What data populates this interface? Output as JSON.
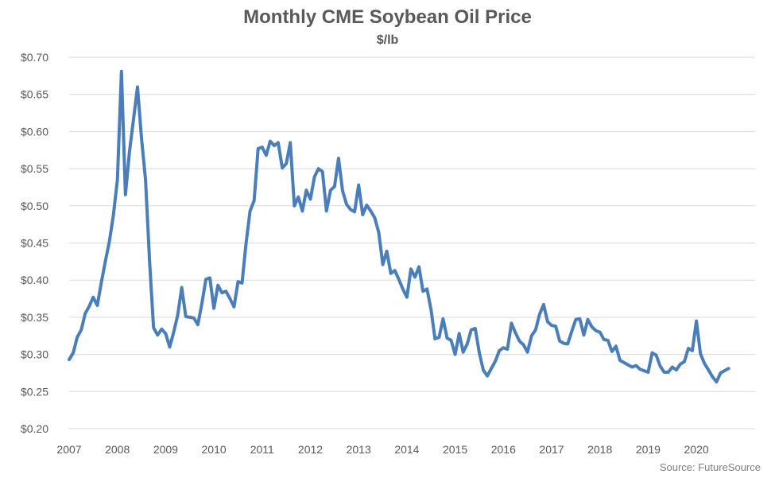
{
  "chart_data": {
    "type": "line",
    "title": "Monthly CME Soybean Oil Price",
    "subtitle": "$/lb",
    "source": "Source: FutureSource",
    "ylim": [
      0.2,
      0.7
    ],
    "y_ticks": [
      "$0.20",
      "$0.25",
      "$0.30",
      "$0.35",
      "$0.40",
      "$0.45",
      "$0.50",
      "$0.55",
      "$0.60",
      "$0.65",
      "$0.70"
    ],
    "x_ticks": [
      "2007",
      "2008",
      "2009",
      "2010",
      "2011",
      "2012",
      "2013",
      "2014",
      "2015",
      "2016",
      "2017",
      "2018",
      "2019",
      "2020"
    ],
    "grid": true,
    "legend": "none",
    "line_color": "#4a7ebb",
    "x_start_year": 2007,
    "series": [
      {
        "values": [
          0.293,
          0.302,
          0.323,
          0.333,
          0.355,
          0.365,
          0.377,
          0.366,
          0.397,
          0.425,
          0.452,
          0.487,
          0.535,
          0.681,
          0.515,
          0.573,
          0.616,
          0.66,
          0.59,
          0.535,
          0.425,
          0.336,
          0.326,
          0.334,
          0.328,
          0.31,
          0.33,
          0.353,
          0.39,
          0.351,
          0.35,
          0.349,
          0.34,
          0.368,
          0.401,
          0.403,
          0.362,
          0.393,
          0.383,
          0.385,
          0.375,
          0.364,
          0.398,
          0.396,
          0.45,
          0.493,
          0.507,
          0.577,
          0.579,
          0.568,
          0.587,
          0.581,
          0.585,
          0.551,
          0.557,
          0.585,
          0.5,
          0.512,
          0.493,
          0.521,
          0.509,
          0.539,
          0.55,
          0.546,
          0.493,
          0.521,
          0.526,
          0.564,
          0.52,
          0.502,
          0.495,
          0.492,
          0.528,
          0.488,
          0.501,
          0.493,
          0.484,
          0.464,
          0.421,
          0.439,
          0.409,
          0.413,
          0.401,
          0.388,
          0.377,
          0.415,
          0.404,
          0.418,
          0.385,
          0.388,
          0.36,
          0.321,
          0.323,
          0.348,
          0.322,
          0.319,
          0.3,
          0.328,
          0.303,
          0.314,
          0.333,
          0.335,
          0.302,
          0.279,
          0.271,
          0.281,
          0.291,
          0.305,
          0.309,
          0.307,
          0.342,
          0.329,
          0.318,
          0.313,
          0.303,
          0.325,
          0.333,
          0.354,
          0.367,
          0.344,
          0.339,
          0.338,
          0.318,
          0.315,
          0.314,
          0.331,
          0.347,
          0.348,
          0.326,
          0.347,
          0.337,
          0.332,
          0.33,
          0.32,
          0.319,
          0.304,
          0.311,
          0.292,
          0.289,
          0.286,
          0.283,
          0.285,
          0.28,
          0.278,
          0.276,
          0.302,
          0.299,
          0.284,
          0.276,
          0.276,
          0.283,
          0.279,
          0.287,
          0.29,
          0.308,
          0.305,
          0.345,
          0.301,
          0.288,
          0.279,
          0.27,
          0.263,
          0.275,
          0.278,
          0.281
        ]
      }
    ]
  }
}
